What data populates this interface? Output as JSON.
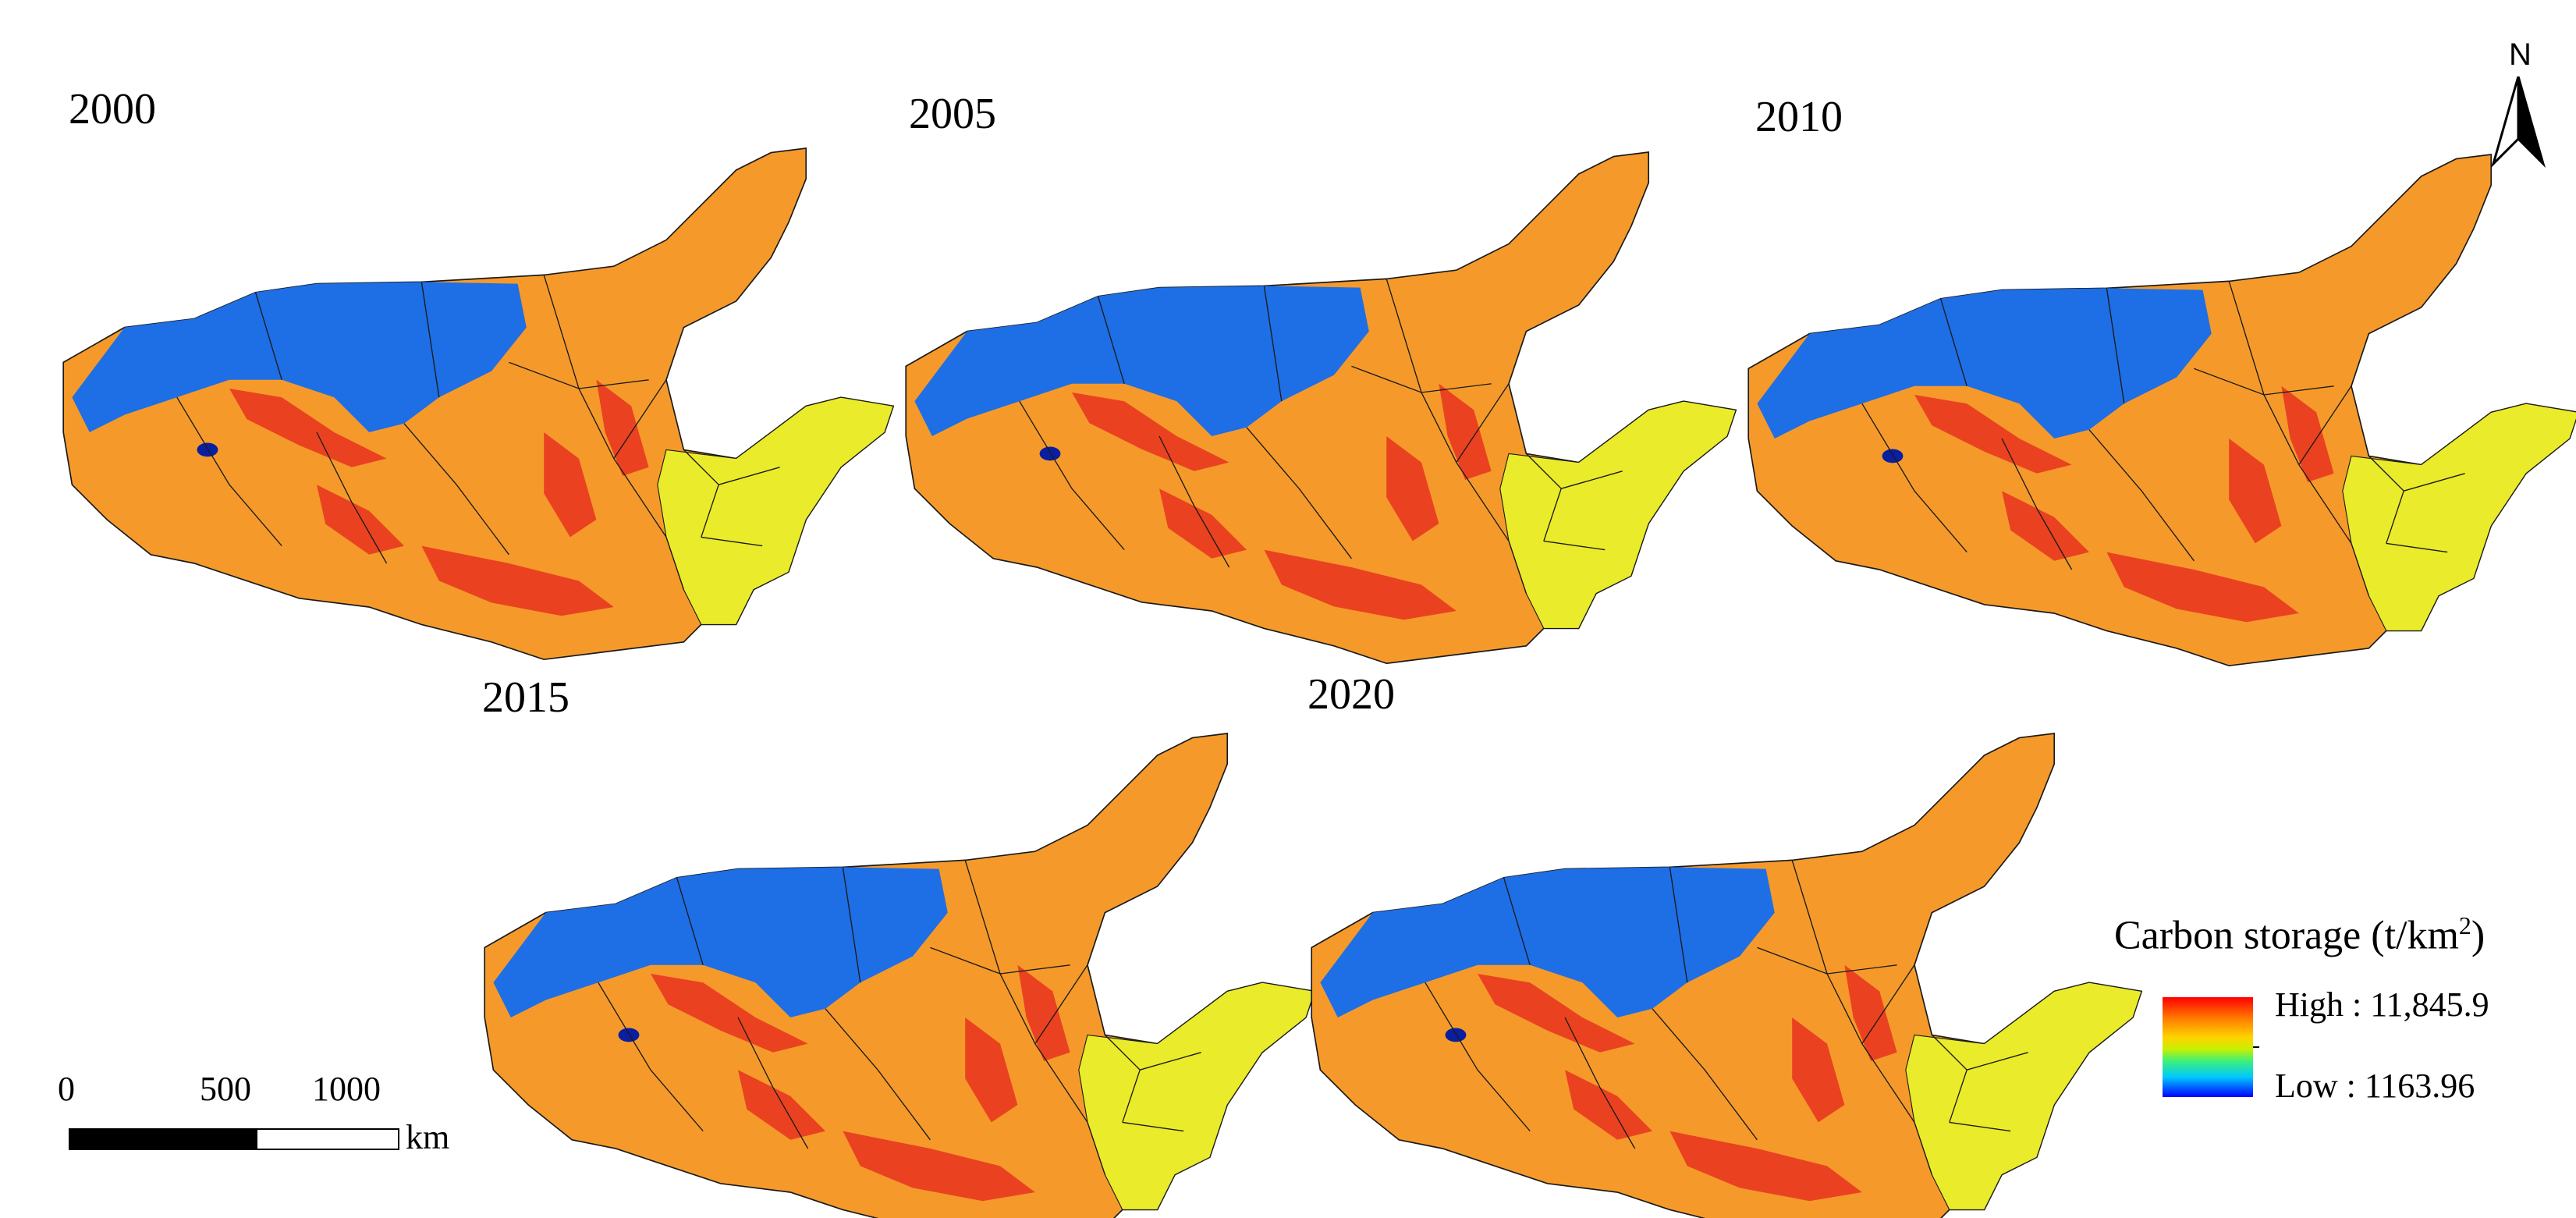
{
  "maps": [
    {
      "year": "2000"
    },
    {
      "year": "2005"
    },
    {
      "year": "2010"
    },
    {
      "year": "2015"
    },
    {
      "year": "2020"
    }
  ],
  "north_arrow": {
    "label": "N"
  },
  "legend": {
    "title": "Carbon storage",
    "unit_prefix": "(t/km",
    "unit_sup": "2",
    "unit_suffix": ")",
    "high_label": "High : 11,845.9",
    "low_label": "Low : 1163.96",
    "colors": [
      "#ff0000",
      "#ff7f00",
      "#ffd200",
      "#c8f000",
      "#3cf07a",
      "#00c8ff",
      "#0000ff"
    ]
  },
  "scale_bar": {
    "ticks": [
      "0",
      "500",
      "1000"
    ],
    "unit": "km"
  },
  "map_colors": {
    "blue": "#1e6ee6",
    "orange": "#f59a2a",
    "yellow": "#eaeb2a",
    "red": "#e8321e",
    "dark_blue": "#0a1ea0",
    "border": "#1a1a1a"
  }
}
